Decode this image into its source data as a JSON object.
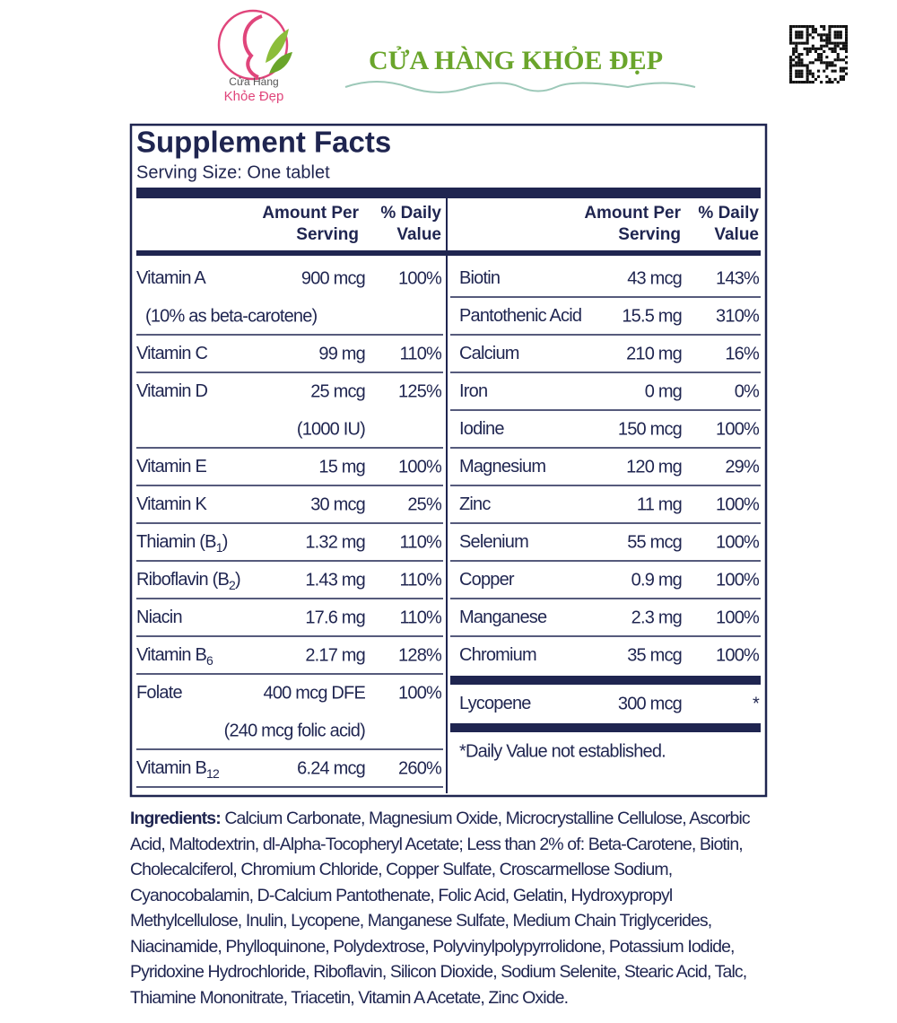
{
  "store": {
    "name": "CỬA HÀNG KHỎE ĐẸP",
    "logo_line1": "Cửa Hàng",
    "logo_line2": "Khỏe Đẹp"
  },
  "facts": {
    "title": "Supplement Facts",
    "serving": "Serving Size: One tablet",
    "header_amount": [
      "Amount Per",
      "Serving"
    ],
    "header_dv": [
      "% Daily",
      "Value"
    ],
    "left_rows": [
      {
        "name": "Vitamin A",
        "amount": "900 mcg",
        "dv": "100%",
        "note": "(10% as beta-carotene)"
      },
      {
        "name": "Vitamin C",
        "amount": "99 mg",
        "dv": "110%"
      },
      {
        "name": "Vitamin D",
        "amount": "25 mcg",
        "dv": "125%",
        "amount_note": "(1000 IU)"
      },
      {
        "name": "Vitamin E",
        "amount": "15 mg",
        "dv": "100%"
      },
      {
        "name": "Vitamin K",
        "amount": "30 mcg",
        "dv": "25%"
      },
      {
        "name": "Thiamin (B",
        "sub": "1",
        "name_end": ")",
        "amount": "1.32 mg",
        "dv": "110%"
      },
      {
        "name": "Riboflavin (B",
        "sub": "2",
        "name_end": ")",
        "amount": "1.43 mg",
        "dv": "110%"
      },
      {
        "name": "Niacin",
        "amount": "17.6 mg",
        "dv": "110%"
      },
      {
        "name": "Vitamin B",
        "sub": "6",
        "amount": "2.17 mg",
        "dv": "128%"
      },
      {
        "name": "Folate",
        "amount": "400 mcg DFE",
        "dv": "100%",
        "amount_note": "(240 mcg folic acid)"
      },
      {
        "name": "Vitamin B",
        "sub": "12",
        "amount": "6.24 mcg",
        "dv": "260%"
      }
    ],
    "right_rows": [
      {
        "name": "Biotin",
        "amount": "43 mcg",
        "dv": "143%"
      },
      {
        "name": "Pantothenic Acid",
        "amount": "15.5 mg",
        "dv": "310%"
      },
      {
        "name": "Calcium",
        "amount": "210 mg",
        "dv": "16%"
      },
      {
        "name": "Iron",
        "amount": "0 mg",
        "dv": "0%"
      },
      {
        "name": "Iodine",
        "amount": "150 mcg",
        "dv": "100%"
      },
      {
        "name": "Magnesium",
        "amount": "120 mg",
        "dv": "29%"
      },
      {
        "name": "Zinc",
        "amount": "11 mg",
        "dv": "100%"
      },
      {
        "name": "Selenium",
        "amount": "55 mcg",
        "dv": "100%"
      },
      {
        "name": "Copper",
        "amount": "0.9 mg",
        "dv": "100%"
      },
      {
        "name": "Manganese",
        "amount": "2.3 mg",
        "dv": "100%"
      },
      {
        "name": "Chromium",
        "amount": "35 mcg",
        "dv": "100%"
      }
    ],
    "extra_row": {
      "name": "Lycopene",
      "amount": "300 mcg",
      "dv": "*"
    },
    "footnote": "*Daily Value not established."
  },
  "ingredients": {
    "label": "Ingredients:",
    "text": "Calcium Carbonate, Magnesium Oxide, Microcrystalline Cellulose, Ascorbic Acid, Maltodextrin, dl-Alpha-Tocopheryl Acetate; Less than 2% of: Beta-Carotene, Biotin, Cholecalciferol, Chromium Chloride, Copper Sulfate, Croscarmellose Sodium, Cyanocobalamin, D-Calcium Pantothenate, Folic Acid, Gelatin, Hydroxypropyl Methylcellulose, Inulin, Lycopene, Manganese Sulfate, Medium Chain Triglycerides, Niacinamide, Phylloquinone, Polydextrose, Polyvinylpolypyrrolidone, Potassium Iodide, Pyridoxine Hydrochloride, Riboflavin, Silicon Dioxide, Sodium Selenite, Stearic Acid, Talc, Thiamine Mononitrate, Triacetin, Vitamin A Acetate, Zinc Oxide."
  }
}
